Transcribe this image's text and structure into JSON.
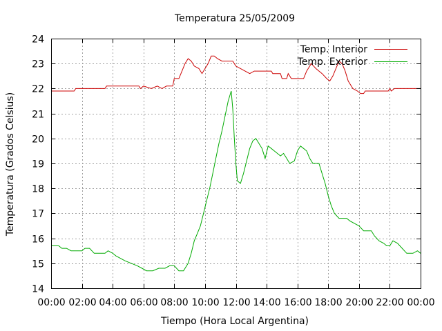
{
  "chart_data": {
    "type": "line",
    "title": "Temperatura 25/05/2009",
    "xlabel": "Tiempo (Hora Local Argentina)",
    "ylabel": "Temperatura (Grados Celsius)",
    "xlim": [
      0,
      24
    ],
    "ylim": [
      14,
      24
    ],
    "x_tick_labels": [
      "00:00",
      "02:00",
      "04:00",
      "06:00",
      "08:00",
      "10:00",
      "12:00",
      "14:00",
      "16:00",
      "18:00",
      "20:00",
      "22:00",
      "00:00"
    ],
    "y_ticks": [
      14,
      15,
      16,
      17,
      18,
      19,
      20,
      21,
      22,
      23,
      24
    ],
    "grid": true,
    "legend_position": "top-right",
    "series": [
      {
        "name": "Temp. Interior",
        "color": "#cc0000",
        "points": [
          [
            0.0,
            21.9
          ],
          [
            1.5,
            21.9
          ],
          [
            1.6,
            22.0
          ],
          [
            3.5,
            22.0
          ],
          [
            3.6,
            22.1
          ],
          [
            5.7,
            22.1
          ],
          [
            5.8,
            22.0
          ],
          [
            6.0,
            22.1
          ],
          [
            6.5,
            22.0
          ],
          [
            6.9,
            22.1
          ],
          [
            7.2,
            22.0
          ],
          [
            7.5,
            22.1
          ],
          [
            7.9,
            22.1
          ],
          [
            8.0,
            22.4
          ],
          [
            8.3,
            22.4
          ],
          [
            8.5,
            22.7
          ],
          [
            8.7,
            23.0
          ],
          [
            8.9,
            23.2
          ],
          [
            9.1,
            23.1
          ],
          [
            9.3,
            22.9
          ],
          [
            9.6,
            22.8
          ],
          [
            9.8,
            22.6
          ],
          [
            10.0,
            22.8
          ],
          [
            10.2,
            23.0
          ],
          [
            10.4,
            23.3
          ],
          [
            10.6,
            23.3
          ],
          [
            10.8,
            23.2
          ],
          [
            11.1,
            23.1
          ],
          [
            11.8,
            23.1
          ],
          [
            12.0,
            22.9
          ],
          [
            12.3,
            22.8
          ],
          [
            12.6,
            22.7
          ],
          [
            12.9,
            22.6
          ],
          [
            13.2,
            22.7
          ],
          [
            14.3,
            22.7
          ],
          [
            14.4,
            22.6
          ],
          [
            14.9,
            22.6
          ],
          [
            15.0,
            22.4
          ],
          [
            15.3,
            22.4
          ],
          [
            15.4,
            22.6
          ],
          [
            15.6,
            22.4
          ],
          [
            16.4,
            22.4
          ],
          [
            16.6,
            22.7
          ],
          [
            16.9,
            23.0
          ],
          [
            17.2,
            22.8
          ],
          [
            17.6,
            22.6
          ],
          [
            17.9,
            22.4
          ],
          [
            18.1,
            22.3
          ],
          [
            18.3,
            22.5
          ],
          [
            18.5,
            22.8
          ],
          [
            18.7,
            23.1
          ],
          [
            18.9,
            23.0
          ],
          [
            19.1,
            22.7
          ],
          [
            19.3,
            22.3
          ],
          [
            19.6,
            22.0
          ],
          [
            19.9,
            21.9
          ],
          [
            20.1,
            21.8
          ],
          [
            20.3,
            21.8
          ],
          [
            20.4,
            21.9
          ],
          [
            21.9,
            21.9
          ],
          [
            22.0,
            22.0
          ],
          [
            22.1,
            21.9
          ],
          [
            22.3,
            22.0
          ],
          [
            24.0,
            22.0
          ]
        ]
      },
      {
        "name": "Temp. Exterior",
        "color": "#00aa00",
        "points": [
          [
            0.0,
            15.7
          ],
          [
            0.5,
            15.7
          ],
          [
            0.7,
            15.6
          ],
          [
            1.0,
            15.6
          ],
          [
            1.3,
            15.5
          ],
          [
            2.0,
            15.5
          ],
          [
            2.2,
            15.6
          ],
          [
            2.5,
            15.6
          ],
          [
            2.8,
            15.4
          ],
          [
            3.5,
            15.4
          ],
          [
            3.7,
            15.5
          ],
          [
            4.0,
            15.4
          ],
          [
            4.2,
            15.3
          ],
          [
            4.5,
            15.2
          ],
          [
            4.8,
            15.1
          ],
          [
            5.2,
            15.0
          ],
          [
            5.6,
            14.9
          ],
          [
            5.9,
            14.8
          ],
          [
            6.2,
            14.7
          ],
          [
            6.6,
            14.7
          ],
          [
            7.0,
            14.8
          ],
          [
            7.4,
            14.8
          ],
          [
            7.7,
            14.9
          ],
          [
            8.0,
            14.9
          ],
          [
            8.3,
            14.7
          ],
          [
            8.6,
            14.7
          ],
          [
            8.9,
            15.0
          ],
          [
            9.1,
            15.4
          ],
          [
            9.3,
            15.9
          ],
          [
            9.5,
            16.2
          ],
          [
            9.7,
            16.5
          ],
          [
            9.9,
            17.0
          ],
          [
            10.1,
            17.5
          ],
          [
            10.3,
            18.0
          ],
          [
            10.5,
            18.6
          ],
          [
            10.7,
            19.2
          ],
          [
            10.9,
            19.8
          ],
          [
            11.1,
            20.3
          ],
          [
            11.3,
            20.9
          ],
          [
            11.5,
            21.5
          ],
          [
            11.7,
            21.9
          ],
          [
            11.8,
            21.2
          ],
          [
            11.9,
            20.0
          ],
          [
            12.0,
            19.0
          ],
          [
            12.1,
            18.3
          ],
          [
            12.3,
            18.2
          ],
          [
            12.5,
            18.6
          ],
          [
            12.7,
            19.1
          ],
          [
            12.9,
            19.6
          ],
          [
            13.1,
            19.9
          ],
          [
            13.3,
            20.0
          ],
          [
            13.5,
            19.8
          ],
          [
            13.7,
            19.6
          ],
          [
            13.9,
            19.2
          ],
          [
            14.1,
            19.7
          ],
          [
            14.3,
            19.6
          ],
          [
            14.5,
            19.5
          ],
          [
            14.7,
            19.4
          ],
          [
            14.9,
            19.3
          ],
          [
            15.1,
            19.4
          ],
          [
            15.3,
            19.2
          ],
          [
            15.5,
            19.0
          ],
          [
            15.8,
            19.1
          ],
          [
            16.0,
            19.5
          ],
          [
            16.2,
            19.7
          ],
          [
            16.4,
            19.6
          ],
          [
            16.6,
            19.5
          ],
          [
            16.8,
            19.2
          ],
          [
            17.0,
            19.0
          ],
          [
            17.4,
            19.0
          ],
          [
            17.6,
            18.6
          ],
          [
            17.8,
            18.2
          ],
          [
            18.0,
            17.7
          ],
          [
            18.2,
            17.3
          ],
          [
            18.4,
            17.0
          ],
          [
            18.7,
            16.8
          ],
          [
            19.2,
            16.8
          ],
          [
            19.4,
            16.7
          ],
          [
            19.7,
            16.6
          ],
          [
            20.0,
            16.5
          ],
          [
            20.3,
            16.3
          ],
          [
            20.8,
            16.3
          ],
          [
            21.0,
            16.1
          ],
          [
            21.3,
            15.9
          ],
          [
            21.6,
            15.8
          ],
          [
            21.8,
            15.7
          ],
          [
            22.0,
            15.7
          ],
          [
            22.2,
            15.9
          ],
          [
            22.5,
            15.8
          ],
          [
            22.8,
            15.6
          ],
          [
            23.1,
            15.4
          ],
          [
            23.5,
            15.4
          ],
          [
            23.8,
            15.5
          ],
          [
            24.0,
            15.4
          ]
        ]
      }
    ]
  }
}
